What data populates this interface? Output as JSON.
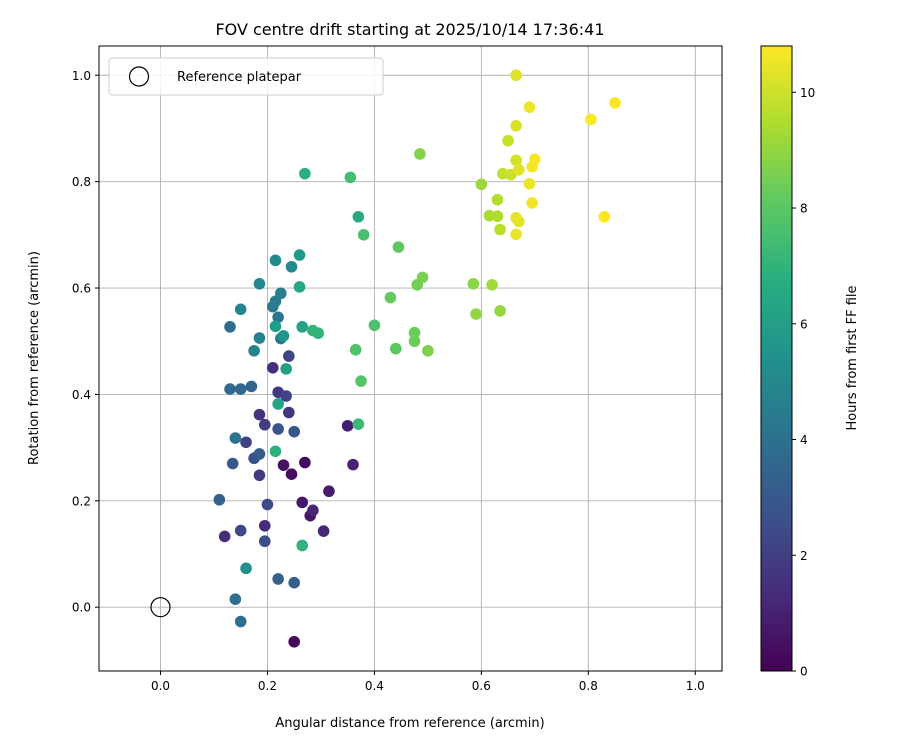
{
  "chart_data": {
    "type": "scatter",
    "title": "FOV centre drift starting at 2025/10/14 17:36:41",
    "xlabel": "Angular distance from reference (arcmin)",
    "ylabel": "Rotation from reference (arcmin)",
    "xlim": [
      -0.115,
      1.05
    ],
    "ylim": [
      -0.12,
      1.055
    ],
    "xticks": [
      0.0,
      0.2,
      0.4,
      0.6,
      0.8,
      1.0
    ],
    "yticks": [
      0.0,
      0.2,
      0.4,
      0.6,
      0.8,
      1.0
    ],
    "xtick_labels": [
      "0.0",
      "0.2",
      "0.4",
      "0.6",
      "0.8",
      "1.0"
    ],
    "ytick_labels": [
      "0.0",
      "0.2",
      "0.4",
      "0.6",
      "0.8",
      "1.0"
    ],
    "grid": true,
    "legend": {
      "label": "Reference platepar",
      "location": "upper-left",
      "marker": "open-circle"
    },
    "reference_point": {
      "x": 0.0,
      "y": 0.0
    },
    "colorbar": {
      "label": "Hours from first FF file",
      "range": [
        0,
        10.8
      ],
      "ticks": [
        0,
        2,
        4,
        6,
        8,
        10
      ],
      "tick_labels": [
        "0",
        "2",
        "4",
        "6",
        "8",
        "10"
      ],
      "colormap": "viridis"
    },
    "points": [
      [
        0.25,
        -0.065,
        0.2
      ],
      [
        0.27,
        0.272,
        0.3
      ],
      [
        0.245,
        0.25,
        0.4
      ],
      [
        0.23,
        0.267,
        0.5
      ],
      [
        0.28,
        0.172,
        0.6
      ],
      [
        0.265,
        0.197,
        0.7
      ],
      [
        0.315,
        0.218,
        0.8
      ],
      [
        0.35,
        0.341,
        0.9
      ],
      [
        0.36,
        0.268,
        1.0
      ],
      [
        0.285,
        0.182,
        1.1
      ],
      [
        0.305,
        0.143,
        1.2
      ],
      [
        0.12,
        0.133,
        1.3
      ],
      [
        0.195,
        0.153,
        1.4
      ],
      [
        0.21,
        0.45,
        1.5
      ],
      [
        0.185,
        0.362,
        1.6
      ],
      [
        0.24,
        0.366,
        1.7
      ],
      [
        0.22,
        0.404,
        1.8
      ],
      [
        0.185,
        0.248,
        1.9
      ],
      [
        0.195,
        0.343,
        2.0
      ],
      [
        0.16,
        0.31,
        2.1
      ],
      [
        0.235,
        0.397,
        2.2
      ],
      [
        0.24,
        0.472,
        2.3
      ],
      [
        0.15,
        0.144,
        2.4
      ],
      [
        0.2,
        0.193,
        2.5
      ],
      [
        0.195,
        0.124,
        2.6
      ],
      [
        0.175,
        0.28,
        2.7
      ],
      [
        0.22,
        0.335,
        2.8
      ],
      [
        0.25,
        0.33,
        2.9
      ],
      [
        0.135,
        0.27,
        3.0
      ],
      [
        0.185,
        0.288,
        3.1
      ],
      [
        0.25,
        0.046,
        3.2
      ],
      [
        0.22,
        0.053,
        3.3
      ],
      [
        0.11,
        0.202,
        3.4
      ],
      [
        0.17,
        0.415,
        3.5
      ],
      [
        0.15,
        0.41,
        3.6
      ],
      [
        0.13,
        0.41,
        3.7
      ],
      [
        0.13,
        0.527,
        3.8
      ],
      [
        0.14,
        0.015,
        3.9
      ],
      [
        0.15,
        -0.027,
        4.0
      ],
      [
        0.14,
        0.318,
        4.1
      ],
      [
        0.22,
        0.545,
        4.2
      ],
      [
        0.225,
        0.505,
        4.3
      ],
      [
        0.21,
        0.565,
        4.4
      ],
      [
        0.215,
        0.575,
        4.5
      ],
      [
        0.225,
        0.59,
        4.6
      ],
      [
        0.185,
        0.506,
        4.7
      ],
      [
        0.175,
        0.482,
        4.8
      ],
      [
        0.15,
        0.56,
        4.9
      ],
      [
        0.185,
        0.608,
        5.0
      ],
      [
        0.215,
        0.652,
        5.1
      ],
      [
        0.245,
        0.64,
        5.2
      ],
      [
        0.16,
        0.073,
        5.4
      ],
      [
        0.23,
        0.51,
        5.6
      ],
      [
        0.26,
        0.662,
        5.8
      ],
      [
        0.215,
        0.528,
        6.0
      ],
      [
        0.235,
        0.448,
        6.1
      ],
      [
        0.265,
        0.527,
        6.2
      ],
      [
        0.22,
        0.382,
        6.3
      ],
      [
        0.26,
        0.602,
        6.4
      ],
      [
        0.37,
        0.734,
        6.5
      ],
      [
        0.27,
        0.815,
        6.7
      ],
      [
        0.215,
        0.293,
        6.8
      ],
      [
        0.265,
        0.116,
        6.9
      ],
      [
        0.285,
        0.52,
        7.0
      ],
      [
        0.295,
        0.515,
        7.1
      ],
      [
        0.37,
        0.344,
        7.3
      ],
      [
        0.355,
        0.808,
        7.5
      ],
      [
        0.38,
        0.7,
        7.6
      ],
      [
        0.4,
        0.53,
        7.7
      ],
      [
        0.365,
        0.484,
        7.8
      ],
      [
        0.375,
        0.425,
        7.9
      ],
      [
        0.44,
        0.486,
        8.0
      ],
      [
        0.445,
        0.677,
        8.1
      ],
      [
        0.43,
        0.582,
        8.2
      ],
      [
        0.475,
        0.516,
        8.3
      ],
      [
        0.475,
        0.5,
        8.4
      ],
      [
        0.48,
        0.606,
        8.5
      ],
      [
        0.49,
        0.62,
        8.6
      ],
      [
        0.5,
        0.482,
        8.7
      ],
      [
        0.485,
        0.852,
        8.8
      ],
      [
        0.585,
        0.608,
        8.9
      ],
      [
        0.59,
        0.551,
        9.0
      ],
      [
        0.635,
        0.557,
        9.1
      ],
      [
        0.6,
        0.795,
        9.2
      ],
      [
        0.62,
        0.606,
        9.3
      ],
      [
        0.615,
        0.736,
        9.4
      ],
      [
        0.63,
        0.735,
        9.5
      ],
      [
        0.63,
        0.766,
        9.6
      ],
      [
        0.635,
        0.71,
        9.7
      ],
      [
        0.64,
        0.815,
        9.8
      ],
      [
        0.65,
        0.877,
        9.9
      ],
      [
        0.655,
        0.813,
        10.0
      ],
      [
        0.665,
        0.84,
        10.1
      ],
      [
        0.665,
        0.905,
        10.2
      ],
      [
        0.67,
        0.822,
        10.3
      ],
      [
        0.67,
        0.725,
        10.35
      ],
      [
        0.665,
        0.732,
        10.4
      ],
      [
        0.665,
        0.701,
        10.45
      ],
      [
        0.69,
        0.796,
        10.5
      ],
      [
        0.69,
        0.94,
        10.55
      ],
      [
        0.695,
        0.76,
        10.6
      ],
      [
        0.695,
        0.828,
        10.65
      ],
      [
        0.665,
        1.0,
        10.3
      ],
      [
        0.7,
        0.842,
        10.7
      ],
      [
        0.805,
        0.917,
        10.75
      ],
      [
        0.83,
        0.734,
        10.8
      ],
      [
        0.85,
        0.948,
        10.8
      ]
    ]
  }
}
